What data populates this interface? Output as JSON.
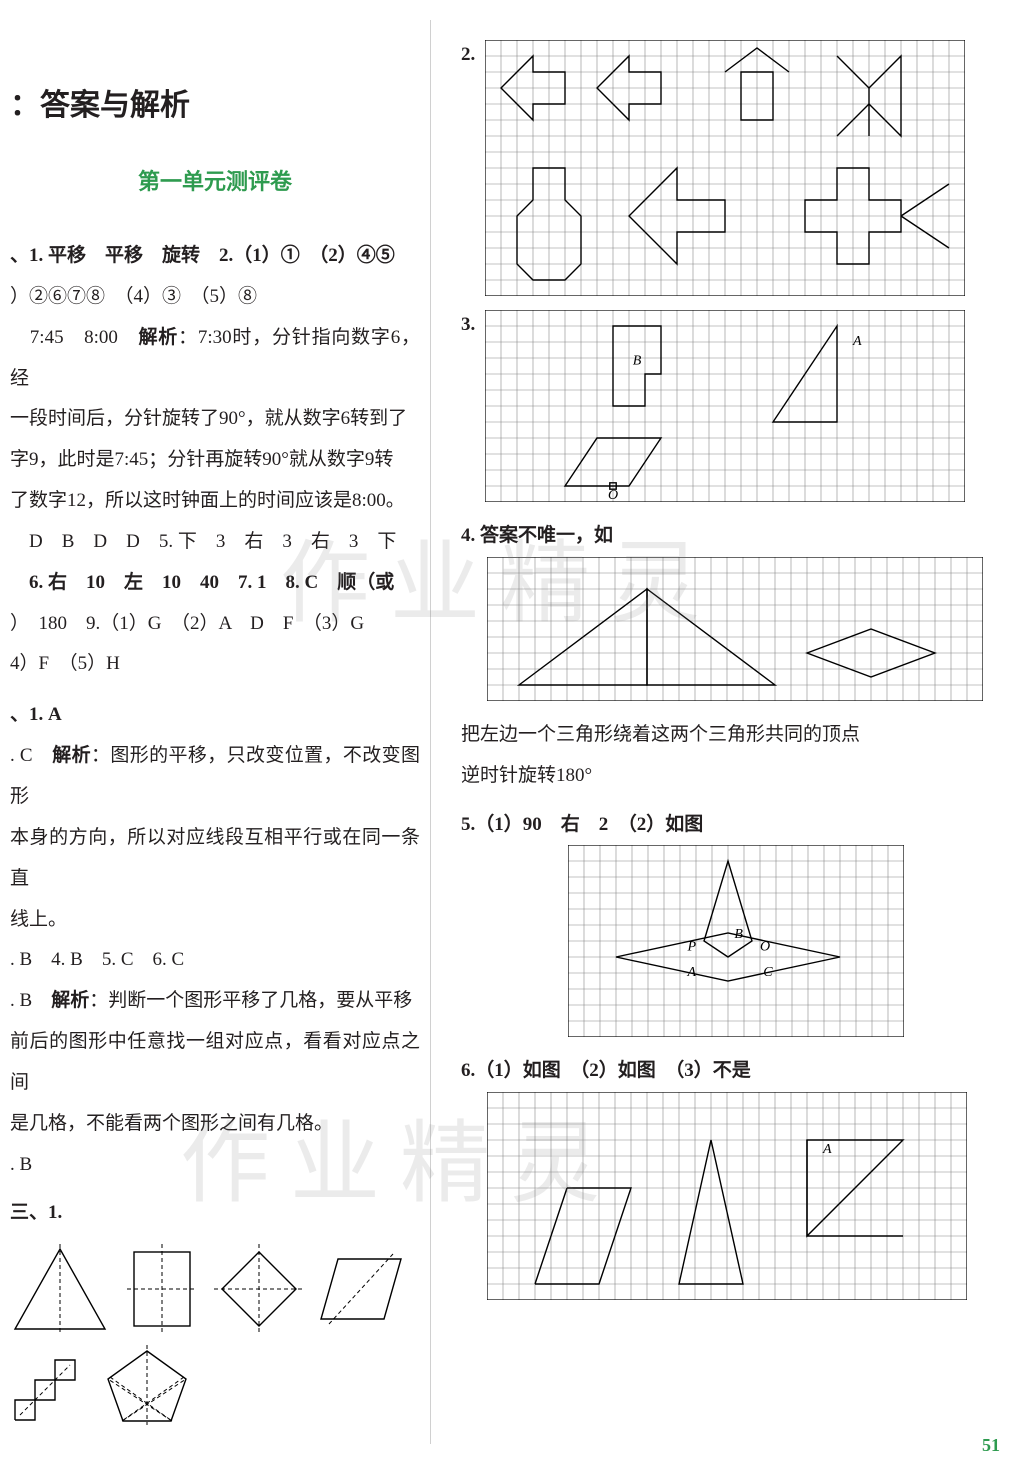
{
  "header": {
    "title": "：答案与解析"
  },
  "unit": {
    "title": "第一单元测评卷"
  },
  "left": {
    "p1": "、1. 平移　平移　旋转　2.（1）①　（2）④⑤",
    "p2": "）②⑥⑦⑧　（4）③　（5）⑧",
    "p3a": "　7:45　8:00　",
    "p3b": "解析",
    "p3c": "：7:30时，分针指向数字6，经",
    "p4": "一段时间后，分针旋转了90°，就从数字6转到了",
    "p5": "字9，此时是7:45；分针再旋转90°就从数字9转",
    "p6": "了数字12，所以这时钟面上的时间应该是8:00。",
    "p7": "　D　B　D　D　5. 下　3　右　3　右　3　下",
    "p8": "　6. 右　10　左　10　40　7. 1　8. C　顺（或",
    "p9": "）　180　9.（1）G　（2）A　D　F　（3）G",
    "p10": "4）F　（5）H",
    "p11": "、1. A",
    "p12a": ". C　",
    "p12b": "解析",
    "p12c": "：图形的平移，只改变位置，不改变图形",
    "p13": "本身的方向，所以对应线段互相平行或在同一条直",
    "p14": "线上。",
    "p15": ". B　4. B　5. C　6. C",
    "p16a": ". B　",
    "p16b": "解析",
    "p16c": "：判断一个图形平移了几格，要从平移",
    "p17": "前后的图形中任意找一组对应点，看看对应点之间",
    "p18": "是几格，不能看两个图形之间有几格。",
    "p19": ". B",
    "p20": "三、1."
  },
  "right": {
    "q2": "2.",
    "q3": "3.",
    "q4a": "4. 答案不唯一，如",
    "r_text1": "把左边一个三角形绕着这两个三角形共同的顶点",
    "r_text2": "逆时针旋转180°",
    "q5": "5.（1）90　右　2　（2）如图",
    "q6": "6.（1）如图　（2）如图　（3）不是",
    "labels": {
      "A": "A",
      "B": "B",
      "O": "O",
      "P": "P",
      "C": "C"
    }
  },
  "pagenum": "51",
  "style": {
    "grid_stroke": "#888888",
    "grid_stroke_w": 0.6,
    "shape_stroke": "#000000",
    "shape_stroke_w": 1.4,
    "cell": 16
  }
}
